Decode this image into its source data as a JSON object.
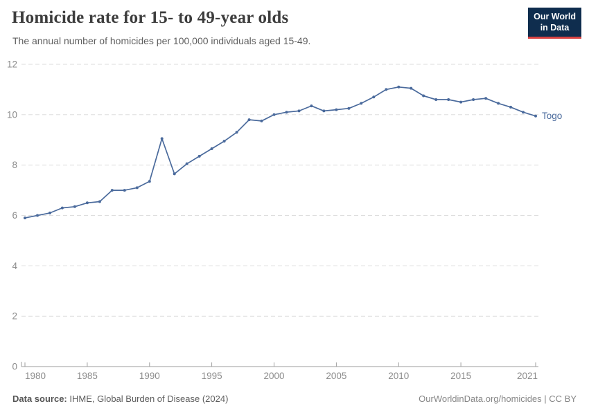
{
  "header": {
    "title": "Homicide rate for 15- to 49-year olds",
    "subtitle": "The annual number of homicides per 100,000 individuals aged 15-49."
  },
  "logo": {
    "line1": "Our World",
    "line2": "in Data"
  },
  "footer": {
    "source_label": "Data source:",
    "source_value": " IHME, Global Burden of Disease (2024)",
    "credit": "OurWorldinData.org/homicides | CC BY"
  },
  "colors": {
    "line": "#4a6a9c",
    "grid": "#dedede",
    "axis_line": "#9e9e9e",
    "tick_label": "#8b8b8b",
    "logo_bg": "#0f2d4e",
    "logo_accent": "#d84242"
  },
  "chart_data": {
    "type": "line",
    "title": "Homicide rate for 15- to 49-year olds",
    "subtitle": "The annual number of homicides per 100,000 individuals aged 15-49.",
    "x": [
      1980,
      1981,
      1982,
      1983,
      1984,
      1985,
      1986,
      1987,
      1988,
      1989,
      1990,
      1991,
      1992,
      1993,
      1994,
      1995,
      1996,
      1997,
      1998,
      1999,
      2000,
      2001,
      2002,
      2003,
      2004,
      2005,
      2006,
      2007,
      2008,
      2009,
      2010,
      2011,
      2012,
      2013,
      2014,
      2015,
      2016,
      2017,
      2018,
      2019,
      2020,
      2021
    ],
    "series": [
      {
        "name": "Togo",
        "values": [
          5.9,
          6.0,
          6.1,
          6.3,
          6.35,
          6.5,
          6.55,
          7.0,
          7.0,
          7.1,
          7.35,
          9.05,
          7.65,
          8.05,
          8.35,
          8.65,
          8.95,
          9.3,
          9.8,
          9.75,
          10.0,
          10.1,
          10.15,
          10.35,
          10.15,
          10.2,
          10.25,
          10.45,
          10.7,
          11.0,
          11.1,
          11.05,
          10.75,
          10.6,
          10.6,
          10.5,
          10.6,
          10.65,
          10.45,
          10.3,
          10.1,
          9.95
        ]
      }
    ],
    "ylim": [
      0,
      12
    ],
    "yticks": [
      0,
      2,
      4,
      6,
      8,
      10,
      12
    ],
    "xtick_labels": [
      1980,
      1985,
      1990,
      1995,
      2000,
      2005,
      2010,
      2015,
      2021
    ],
    "xlabel": "",
    "ylabel": "",
    "grid": true,
    "legend": "end-of-line-label"
  }
}
